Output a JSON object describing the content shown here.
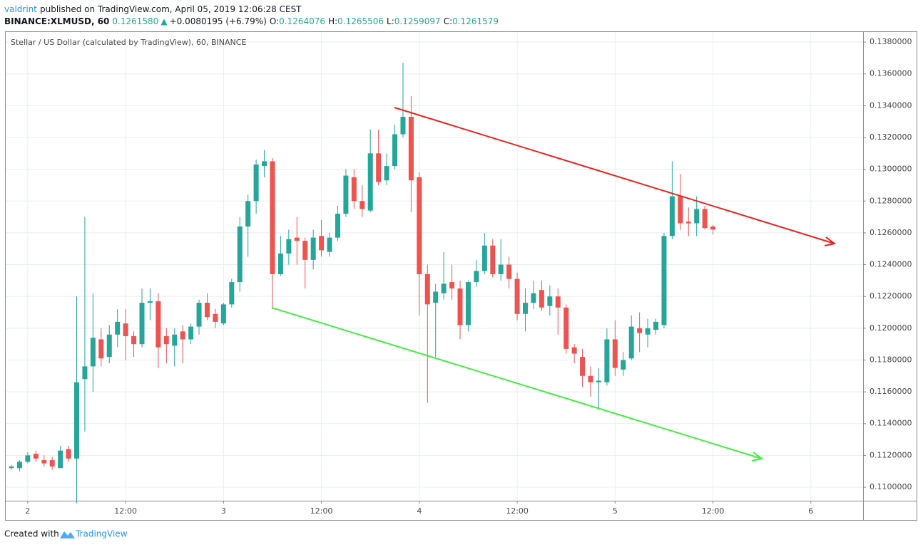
{
  "header": {
    "author": "valdrint",
    "published": "published on TradingView.com, April 05, 2019 12:06:28 CEST",
    "symbol": "BINANCE:XLMUSD, 60",
    "last": "0.1261580",
    "arrow": "▲",
    "change": "+0.0080195 (+6.79%)",
    "o_label": "O:",
    "o_value": "0.1264076",
    "h_label": "H:",
    "h_value": "0.1265506",
    "l_label": "L:",
    "l_value": "0.1259097",
    "c_label": "C:",
    "c_value": "0.1261579"
  },
  "footer": {
    "created": "Created with",
    "brand": "TradingView"
  },
  "chart_data": {
    "type": "candlestick",
    "title": "Stellar / US Dollar (calculated by TradingView), 60, BINANCE",
    "up_color": "#26a69a",
    "down_color": "#ef5350",
    "grid": true,
    "xlim": [
      -0.7,
      104.4
    ],
    "xticks": [
      {
        "value": 2,
        "label": "2"
      },
      {
        "value": 14,
        "label": "12:00"
      },
      {
        "value": 26,
        "label": "3"
      },
      {
        "value": 38,
        "label": "12:00"
      },
      {
        "value": 50,
        "label": "4"
      },
      {
        "value": 62,
        "label": "12:00"
      },
      {
        "value": 74,
        "label": "5"
      },
      {
        "value": 86,
        "label": "12:00"
      },
      {
        "value": 98,
        "label": "6"
      }
    ],
    "ylim": [
      0.10915,
      0.13863
    ],
    "yticks": [
      {
        "value": 0.11,
        "label": "0.1100000"
      },
      {
        "value": 0.112,
        "label": "0.1120000"
      },
      {
        "value": 0.114,
        "label": "0.1140000"
      },
      {
        "value": 0.116,
        "label": "0.1160000"
      },
      {
        "value": 0.118,
        "label": "0.1180000"
      },
      {
        "value": 0.12,
        "label": "0.1200000"
      },
      {
        "value": 0.122,
        "label": "0.1220000"
      },
      {
        "value": 0.124,
        "label": "0.1240000"
      },
      {
        "value": 0.126,
        "label": "0.1260000"
      },
      {
        "value": 0.128,
        "label": "0.1280000"
      },
      {
        "value": 0.13,
        "label": "0.1300000"
      },
      {
        "value": 0.132,
        "label": "0.1320000"
      },
      {
        "value": 0.134,
        "label": "0.1340000"
      },
      {
        "value": 0.136,
        "label": "0.1360000"
      },
      {
        "value": 0.138,
        "label": "0.1380000"
      }
    ],
    "open": [
      0.1112,
      0.1112,
      0.1116,
      0.1121,
      0.1117,
      0.1117,
      0.1112,
      0.1124,
      0.1118,
      0.1168,
      0.1176,
      0.1193,
      0.1182,
      0.1196,
      0.1203,
      0.1195,
      0.119,
      0.1216,
      0.1217,
      0.1195,
      0.1189,
      0.1198,
      0.1193,
      0.1201,
      0.1216,
      0.1209,
      0.1203,
      0.1215,
      0.1229,
      0.1264,
      0.128,
      0.1302,
      0.1305,
      0.1234,
      0.1247,
      0.1257,
      0.1255,
      0.1243,
      0.1258,
      0.1248,
      0.1257,
      0.1272,
      0.1295,
      0.128,
      0.1274,
      0.131,
      0.1293,
      0.1302,
      0.1322,
      0.1333,
      0.1295,
      0.1234,
      0.1216,
      0.1222,
      0.1229,
      0.1225,
      0.1202,
      0.1229,
      0.1236,
      0.1252,
      0.1234,
      0.124,
      0.1231,
      0.1209,
      0.1216,
      0.1224,
      0.1214,
      0.122,
      0.1213,
      0.1188,
      0.1182,
      0.117,
      0.1166,
      0.1166,
      0.1193,
      0.1174,
      0.1181,
      0.12,
      0.1196,
      0.1199,
      0.1202,
      0.1258,
      0.1283,
      0.1267,
      0.1266,
      0.1275,
      0.1264
    ],
    "high": [
      0.1114,
      0.1117,
      0.1122,
      0.1123,
      0.112,
      0.1119,
      0.1126,
      0.1126,
      0.122,
      0.127,
      0.1222,
      0.12,
      0.1202,
      0.1212,
      0.1212,
      0.1198,
      0.1225,
      0.1225,
      0.1222,
      0.12,
      0.12,
      0.1202,
      0.1203,
      0.1218,
      0.1222,
      0.1212,
      0.1216,
      0.1231,
      0.127,
      0.1284,
      0.1306,
      0.1312,
      0.1307,
      0.1258,
      0.1262,
      0.127,
      0.1257,
      0.1262,
      0.1268,
      0.126,
      0.1277,
      0.13,
      0.13,
      0.129,
      0.1325,
      0.1325,
      0.131,
      0.1328,
      0.1367,
      0.1346,
      0.1298,
      0.124,
      0.1228,
      0.1248,
      0.124,
      0.123,
      0.123,
      0.1243,
      0.126,
      0.1256,
      0.1256,
      0.1245,
      0.1235,
      0.1225,
      0.123,
      0.123,
      0.1227,
      0.1225,
      0.1215,
      0.119,
      0.1187,
      0.1176,
      0.1175,
      0.12,
      0.1205,
      0.1185,
      0.1208,
      0.121,
      0.1206,
      0.1206,
      0.126,
      0.1305,
      0.1297,
      0.1276,
      0.1283,
      0.1277,
      0.1265
    ],
    "low": [
      0.1111,
      0.111,
      0.1115,
      0.1116,
      0.1113,
      0.1111,
      0.1112,
      0.1116,
      0.109,
      0.1135,
      0.116,
      0.1176,
      0.1178,
      0.1188,
      0.118,
      0.1182,
      0.1188,
      0.1205,
      0.1175,
      0.1178,
      0.1176,
      0.1178,
      0.119,
      0.1196,
      0.1205,
      0.12,
      0.1202,
      0.1213,
      0.1223,
      0.1245,
      0.1272,
      0.1295,
      0.1212,
      0.1233,
      0.124,
      0.124,
      0.1225,
      0.1237,
      0.1245,
      0.1245,
      0.1255,
      0.127,
      0.1275,
      0.127,
      0.1273,
      0.129,
      0.129,
      0.13,
      0.132,
      0.1273,
      0.1208,
      0.1153,
      0.1182,
      0.1218,
      0.1218,
      0.1193,
      0.1198,
      0.1226,
      0.1234,
      0.1232,
      0.123,
      0.1225,
      0.1205,
      0.1198,
      0.1212,
      0.1211,
      0.1208,
      0.1196,
      0.1184,
      0.1178,
      0.1163,
      0.1157,
      0.115,
      0.1164,
      0.117,
      0.117,
      0.118,
      0.1185,
      0.1188,
      0.1196,
      0.12,
      0.1256,
      0.1262,
      0.1258,
      0.1258,
      0.1262,
      0.1259
    ],
    "close": [
      0.1113,
      0.1116,
      0.112,
      0.1118,
      0.1115,
      0.1113,
      0.1123,
      0.1118,
      0.1166,
      0.1176,
      0.1194,
      0.1181,
      0.1196,
      0.1204,
      0.1195,
      0.119,
      0.1216,
      0.1217,
      0.1188,
      0.119,
      0.1196,
      0.1193,
      0.1201,
      0.1216,
      0.1207,
      0.1204,
      0.1215,
      0.1229,
      0.1264,
      0.128,
      0.1303,
      0.1305,
      0.1234,
      0.1247,
      0.1256,
      0.1255,
      0.1243,
      0.1257,
      0.1249,
      0.1257,
      0.1272,
      0.1296,
      0.128,
      0.1275,
      0.131,
      0.1292,
      0.1302,
      0.1322,
      0.1333,
      0.1293,
      0.1234,
      0.1215,
      0.1223,
      0.1228,
      0.1225,
      0.1202,
      0.1229,
      0.1236,
      0.1252,
      0.1234,
      0.124,
      0.1231,
      0.1209,
      0.1216,
      0.1222,
      0.1213,
      0.122,
      0.1213,
      0.1187,
      0.1184,
      0.117,
      0.1166,
      0.1167,
      0.1193,
      0.1175,
      0.118,
      0.1201,
      0.1197,
      0.12,
      0.1204,
      0.1258,
      0.1283,
      0.1266,
      0.1266,
      0.1275,
      0.1263,
      0.1262
    ]
  }
}
